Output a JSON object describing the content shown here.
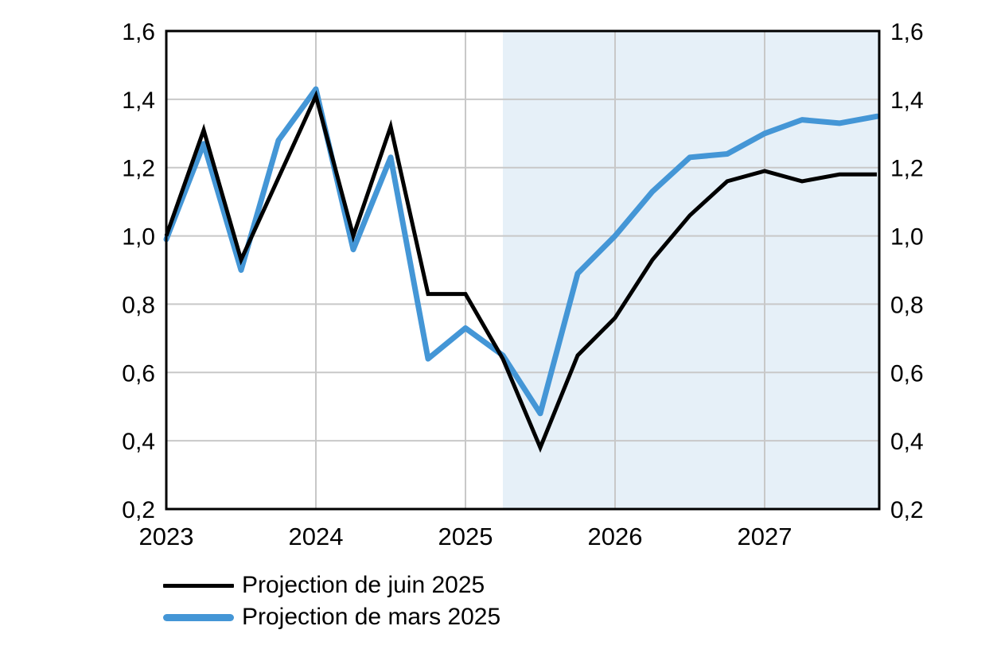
{
  "figure": {
    "background_color": "#ffffff",
    "plot_border_color": "#000000",
    "gridline_color": "#c8c8c8",
    "projection_shading_color": "#e6f0f8",
    "text_color": "#000000"
  },
  "legend": {
    "items": [
      {
        "label": "Projection de juin 2025",
        "color": "#000000",
        "swatch": "thin-black-line"
      },
      {
        "label": "Projection de mars 2025",
        "color": "#4496d6",
        "swatch": "thick-blue-line"
      }
    ]
  },
  "chart_data": {
    "type": "line",
    "title": "",
    "xlabel": "",
    "ylabel": "",
    "x_frequency": "quarterly",
    "x": [
      "2023-T1",
      "2023-T2",
      "2023-T3",
      "2023-T4",
      "2024-T1",
      "2024-T2",
      "2024-T3",
      "2024-T4",
      "2025-T1",
      "2025-T2",
      "2025-T3",
      "2025-T4",
      "2026-T1",
      "2026-T2",
      "2026-T3",
      "2026-T4",
      "2027-T1",
      "2027-T2",
      "2027-T3",
      "2027-T4"
    ],
    "series": [
      {
        "name": "Projection de juin 2025",
        "color": "#000000",
        "line_width": 5,
        "values": [
          1.0,
          1.31,
          0.93,
          1.17,
          1.41,
          1.0,
          1.32,
          0.83,
          0.83,
          0.64,
          0.38,
          0.65,
          0.76,
          0.93,
          1.06,
          1.16,
          1.19,
          1.16,
          1.18,
          1.18
        ]
      },
      {
        "name": "Projection de mars 2025",
        "color": "#4496d6",
        "line_width": 7,
        "values": [
          0.99,
          1.27,
          0.9,
          1.28,
          1.43,
          0.96,
          1.23,
          0.64,
          0.73,
          0.65,
          0.48,
          0.89,
          1.0,
          1.13,
          1.23,
          1.24,
          1.3,
          1.34,
          1.33,
          1.35
        ]
      }
    ],
    "ylim": [
      0.2,
      1.6
    ],
    "y_ticks": [
      {
        "v": 0.2,
        "label": "0,2"
      },
      {
        "v": 0.4,
        "label": "0,4"
      },
      {
        "v": 0.6,
        "label": "0,6"
      },
      {
        "v": 0.8,
        "label": "0,8"
      },
      {
        "v": 1.0,
        "label": "1,0"
      },
      {
        "v": 1.2,
        "label": "1,2"
      },
      {
        "v": 1.4,
        "label": "1,4"
      },
      {
        "v": 1.6,
        "label": "1,6"
      }
    ],
    "y_axis_sides": [
      "left",
      "right"
    ],
    "x_ticks": [
      {
        "label": "2023",
        "quarter_index": 0
      },
      {
        "label": "2024",
        "quarter_index": 4
      },
      {
        "label": "2025",
        "quarter_index": 8
      },
      {
        "label": "2026",
        "quarter_index": 12
      },
      {
        "label": "2027",
        "quarter_index": 16
      }
    ],
    "grid": true,
    "projection_shading": {
      "start": "2025-T2",
      "start_quarter_index": 9,
      "color": "#e6f0f8"
    },
    "legend_position": "bottom-left"
  }
}
